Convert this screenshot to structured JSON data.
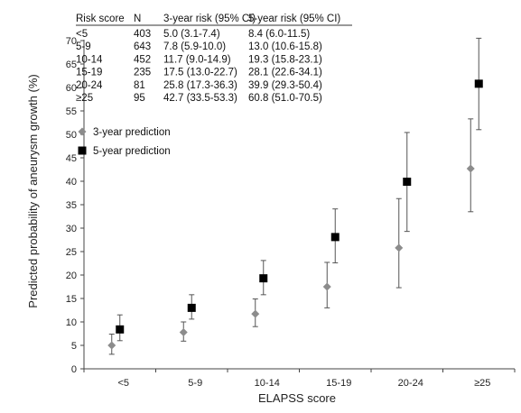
{
  "chart_data": {
    "type": "scatter",
    "categories": [
      "<5",
      "5-9",
      "10-14",
      "15-19",
      "20-24",
      "≥25"
    ],
    "xlabel": "ELAPSS score",
    "ylabel": "Predicted probability of aneurysm growth (%)",
    "ylim": [
      0,
      70
    ],
    "yticks": [
      0,
      5,
      10,
      15,
      20,
      25,
      30,
      35,
      40,
      45,
      50,
      55,
      60,
      65,
      70
    ],
    "grid": false,
    "legend_position": "left, below table",
    "series": [
      {
        "name": "3-year prediction",
        "marker": "diamond",
        "color": "#8c8c8c",
        "values": [
          5.0,
          7.8,
          11.7,
          17.5,
          25.8,
          42.7
        ],
        "lower": [
          3.1,
          5.9,
          9.0,
          13.0,
          17.3,
          33.5
        ],
        "upper": [
          7.4,
          10.0,
          14.9,
          22.7,
          36.3,
          53.3
        ]
      },
      {
        "name": "5-year prediction",
        "marker": "square",
        "color": "#000000",
        "values": [
          8.4,
          13.0,
          19.3,
          28.1,
          39.9,
          60.8
        ],
        "lower": [
          6.0,
          10.6,
          15.8,
          22.6,
          29.3,
          51.0
        ],
        "upper": [
          11.5,
          15.8,
          23.1,
          34.1,
          50.4,
          70.5
        ]
      }
    ],
    "table": {
      "headers": [
        "Risk score",
        "N",
        "3-year risk (95% CI)",
        "5-year risk (95% CI)"
      ],
      "rows": [
        [
          "<5",
          "403",
          "5.0 (3.1-7.4)",
          "8.4 (6.0-11.5)"
        ],
        [
          "5-9",
          "643",
          "7.8 (5.9-10.0)",
          "13.0 (10.6-15.8)"
        ],
        [
          "10-14",
          "452",
          "11.7 (9.0-14.9)",
          "19.3 (15.8-23.1)"
        ],
        [
          "15-19",
          "235",
          "17.5 (13.0-22.7)",
          "28.1 (22.6-34.1)"
        ],
        [
          "20-24",
          "81",
          "25.8 (17.3-36.3)",
          "39.9 (29.3-50.4)"
        ],
        [
          "≥25",
          "95",
          "42.7 (33.5-53.3)",
          "60.8 (51.0-70.5)"
        ]
      ]
    }
  }
}
